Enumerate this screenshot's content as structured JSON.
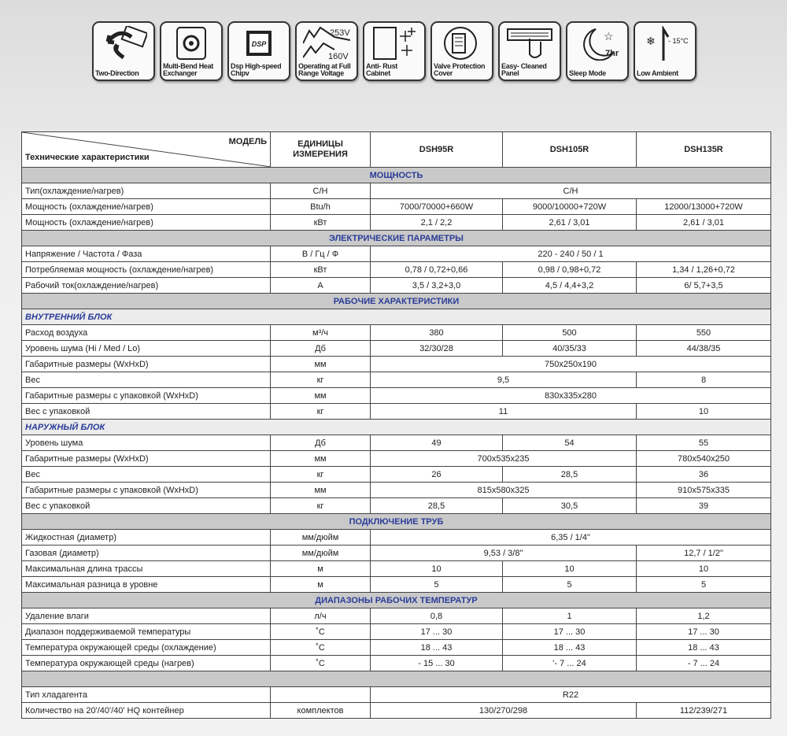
{
  "icons": [
    {
      "name": "two-direction-icon",
      "label": "Two-Direction"
    },
    {
      "name": "multi-bend-heat-exchanger-icon",
      "label": "Multi-Bend Heat Exchanger"
    },
    {
      "name": "dsp-chip-icon",
      "label": "Dsp High-speed Chipv",
      "glyph": "DSP"
    },
    {
      "name": "voltage-range-icon",
      "label": "Operating at Full Range Voltage",
      "glyph": "253V 160V"
    },
    {
      "name": "anti-rust-cabinet-icon",
      "label": "Anti- Rust Cabinet"
    },
    {
      "name": "valve-protection-icon",
      "label": "Valve Protection Cover"
    },
    {
      "name": "easy-clean-panel-icon",
      "label": "Easy- Cleaned Panel"
    },
    {
      "name": "sleep-mode-icon",
      "label": "Sleep Mode",
      "glyph": "7hr"
    },
    {
      "name": "low-ambient-icon",
      "label": "Low Ambient",
      "glyph": "- 15°C"
    }
  ],
  "header": {
    "model": "МОДЕЛЬ",
    "specs": "Технические характеристики",
    "units": "ЕДИНИЦЫ ИЗМЕРЕНИЯ",
    "models": [
      "DSH95R",
      "DSH105R",
      "DSH135R"
    ]
  },
  "colors": {
    "section_text": "#2b3c99",
    "section_bg": "#c9c9c9"
  },
  "rows": [
    {
      "type": "sec",
      "label": "МОЩНОСТЬ"
    },
    {
      "label": "Тип(охлаждение/нагрев)",
      "unit": "C/H",
      "cells": [
        {
          "v": "C/H",
          "span": 3
        }
      ]
    },
    {
      "label": "Мощность (охлаждение/нагрев)",
      "unit": "Btu/h",
      "cells": [
        {
          "v": "7000/70000+660W"
        },
        {
          "v": "9000/10000+720W"
        },
        {
          "v": "12000/13000+720W"
        }
      ]
    },
    {
      "label": "Мощность (охлаждение/нагрев)",
      "unit": "кВт",
      "cells": [
        {
          "v": "2,1 / 2,2"
        },
        {
          "v": "2,61 / 3,01"
        },
        {
          "v": "2,61 / 3,01"
        }
      ]
    },
    {
      "type": "sec",
      "label": "ЭЛЕКТРИЧЕСКИЕ ПАРАМЕТРЫ"
    },
    {
      "label": "Напряжение / Частота / Фаза",
      "unit": "В / Гц / Ф",
      "cells": [
        {
          "v": "220 - 240 / 50 / 1",
          "span": 3
        }
      ]
    },
    {
      "label": "Потребляемая мощность (охлаждение/нагрев)",
      "unit": "кВт",
      "cells": [
        {
          "v": "0,78 / 0,72+0,66"
        },
        {
          "v": "0,98 / 0,98+0,72"
        },
        {
          "v": "1,34 / 1,26+0,72"
        }
      ]
    },
    {
      "label": "Рабочий ток(охлаждение/нагрев)",
      "unit": "А",
      "cells": [
        {
          "v": "3,5 / 3,2+3,0"
        },
        {
          "v": "4,5 / 4,4+3,2"
        },
        {
          "v": "6/ 5,7+3,5"
        }
      ]
    },
    {
      "type": "sec",
      "label": "РАБОЧИЕ ХАРАКТЕРИСТИКИ"
    },
    {
      "type": "sub",
      "label": "ВНУТРЕННИЙ БЛОК"
    },
    {
      "label": "Расход воздуха",
      "unit": "м³/ч",
      "cells": [
        {
          "v": "380"
        },
        {
          "v": "500"
        },
        {
          "v": "550"
        }
      ]
    },
    {
      "label": "Уровень шума (Hi / Med / Lo)",
      "unit": "Дб",
      "cells": [
        {
          "v": "32/30/28"
        },
        {
          "v": "40/35/33"
        },
        {
          "v": "44/38/35"
        }
      ]
    },
    {
      "label": "Габаритные размеры (WxHxD)",
      "unit": "мм",
      "cells": [
        {
          "v": "750x250x190",
          "span": 3
        }
      ]
    },
    {
      "label": "Вес",
      "unit": "кг",
      "cells": [
        {
          "v": "9,5",
          "span": 2
        },
        {
          "v": "8"
        }
      ]
    },
    {
      "label": "Габаритные размеры с упаковкой (WxHxD)",
      "unit": "мм",
      "cells": [
        {
          "v": "830x335x280",
          "span": 3
        }
      ]
    },
    {
      "label": "Вес с упаковкой",
      "unit": "кг",
      "cells": [
        {
          "v": "11",
          "span": 2
        },
        {
          "v": "10"
        }
      ]
    },
    {
      "type": "sub",
      "label": "НАРУЖНЫЙ БЛОК"
    },
    {
      "label": "Уровень шума",
      "unit": "Дб",
      "cells": [
        {
          "v": "49"
        },
        {
          "v": "54"
        },
        {
          "v": "55"
        }
      ]
    },
    {
      "label": "Габаритные размеры (WxHxD)",
      "unit": "мм",
      "cells": [
        {
          "v": "700x535x235",
          "span": 2
        },
        {
          "v": "780x540x250"
        }
      ]
    },
    {
      "label": "Вес",
      "unit": "кг",
      "cells": [
        {
          "v": "26"
        },
        {
          "v": "28,5"
        },
        {
          "v": "36"
        }
      ]
    },
    {
      "label": "Габаритные размеры с упаковкой (WxHxD)",
      "unit": "мм",
      "cells": [
        {
          "v": "815x580x325",
          "span": 2
        },
        {
          "v": "910x575x335"
        }
      ]
    },
    {
      "label": "Вес с упаковкой",
      "unit": "кг",
      "cells": [
        {
          "v": "28,5"
        },
        {
          "v": "30,5"
        },
        {
          "v": "39"
        }
      ]
    },
    {
      "type": "sec",
      "label": "ПОДКЛЮЧЕНИЕ ТРУБ"
    },
    {
      "label": "Жидкостная (диаметр)",
      "unit": "мм/дюйм",
      "cells": [
        {
          "v": "6,35 / 1/4\"",
          "span": 3
        }
      ]
    },
    {
      "label": "Газовая (диаметр)",
      "unit": "мм/дюйм",
      "cells": [
        {
          "v": "9,53 / 3/8\"",
          "span": 2
        },
        {
          "v": "12,7 / 1/2\""
        }
      ]
    },
    {
      "label": "Максимальная длина трассы",
      "unit": "м",
      "cells": [
        {
          "v": "10"
        },
        {
          "v": "10"
        },
        {
          "v": "10"
        }
      ]
    },
    {
      "label": "Максимальная разница в уровне",
      "unit": "м",
      "cells": [
        {
          "v": "5"
        },
        {
          "v": "5"
        },
        {
          "v": "5"
        }
      ]
    },
    {
      "type": "sec",
      "label": "ДИАПАЗОНЫ РАБОЧИХ ТЕМПЕРАТУР"
    },
    {
      "label": "Удаление влаги",
      "unit": "л/ч",
      "cells": [
        {
          "v": "0,8"
        },
        {
          "v": "1"
        },
        {
          "v": "1,2"
        }
      ]
    },
    {
      "label": "Диапазон поддерживаемой температуры",
      "unit": "˚C",
      "cells": [
        {
          "v": "17 ... 30"
        },
        {
          "v": "17 ... 30"
        },
        {
          "v": "17 ... 30"
        }
      ]
    },
    {
      "label": "Температура окружающей среды (охлаждение)",
      "unit": "˚C",
      "cells": [
        {
          "v": "18 ... 43"
        },
        {
          "v": "18 ... 43"
        },
        {
          "v": "18 ... 43"
        }
      ]
    },
    {
      "label": "Температура окружающей среды (нагрев)",
      "unit": "˚C",
      "cells": [
        {
          "v": "- 15 ... 30"
        },
        {
          "v": "'- 7 ... 24"
        },
        {
          "v": "- 7 ... 24"
        }
      ]
    },
    {
      "type": "sec",
      "label": ""
    },
    {
      "label": "Тип хладагента",
      "unit": "",
      "cells": [
        {
          "v": "R22",
          "span": 3
        }
      ]
    },
    {
      "label": "Количество на 20'/40'/40' HQ контейнер",
      "unit": "комплектов",
      "cells": [
        {
          "v": "130/270/298",
          "span": 2
        },
        {
          "v": "112/239/271"
        }
      ]
    }
  ]
}
